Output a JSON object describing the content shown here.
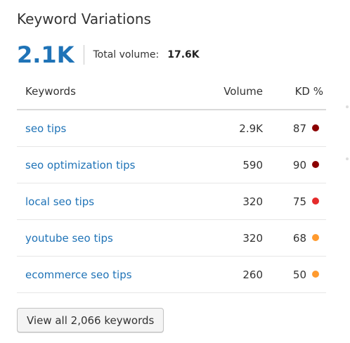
{
  "widget": {
    "title": "Keyword Variations",
    "count": "2.1K",
    "total_label": "Total volume:",
    "total_value": "17.6K"
  },
  "table": {
    "headers": {
      "keyword": "Keywords",
      "volume": "Volume",
      "kd": "KD %"
    },
    "rows": [
      {
        "keyword": "seo tips",
        "volume": "2.9K",
        "kd": "87",
        "kd_color": "#8b0000"
      },
      {
        "keyword": "seo optimization tips",
        "volume": "590",
        "kd": "90",
        "kd_color": "#8b0000"
      },
      {
        "keyword": "local seo tips",
        "volume": "320",
        "kd": "75",
        "kd_color": "#e52b2b"
      },
      {
        "keyword": "youtube seo tips",
        "volume": "320",
        "kd": "68",
        "kd_color": "#ff9a2e"
      },
      {
        "keyword": "ecommerce seo tips",
        "volume": "260",
        "kd": "50",
        "kd_color": "#ff9a2e"
      }
    ]
  },
  "footer": {
    "view_all_label": "View all 2,066 keywords"
  },
  "colors": {
    "accent": "#1f73b7",
    "kd_very_hard": "#8b0000",
    "kd_hard": "#e52b2b",
    "kd_difficult": "#ff9a2e"
  }
}
